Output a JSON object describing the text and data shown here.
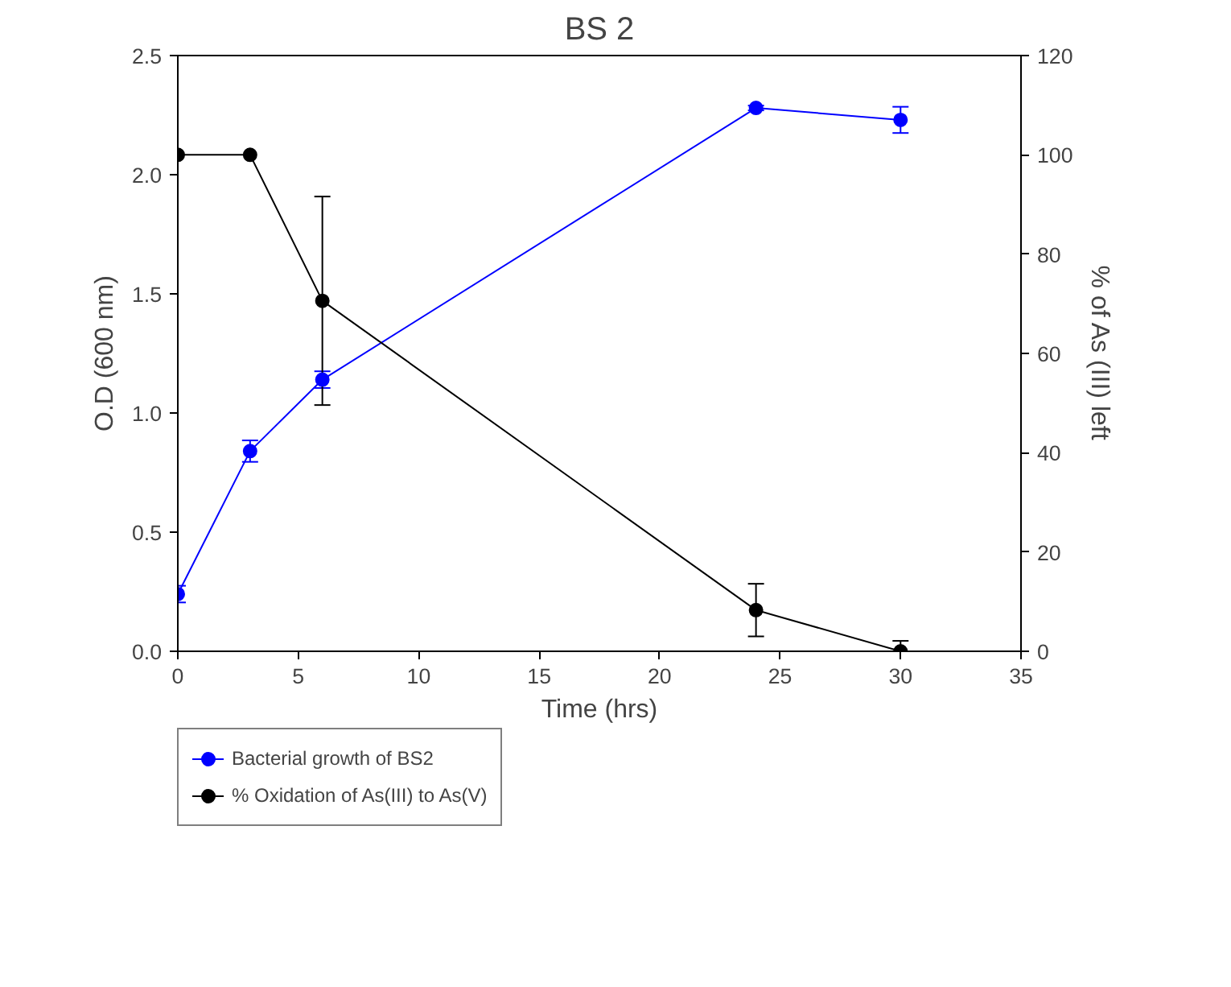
{
  "chart_data": {
    "type": "line",
    "title": "BS 2",
    "xlabel": "Time (hrs)",
    "ylabel": "O.D (600 nm)",
    "y2label": "% of As (III) left",
    "x": [
      0,
      3,
      6,
      24,
      30
    ],
    "series": [
      {
        "name": "Bacterial growth of BS2",
        "color": "#0000ff",
        "values": [
          0.24,
          0.84,
          1.14,
          2.28,
          2.23
        ],
        "errors": [
          0.035,
          0.045,
          0.035,
          0.01,
          0.055
        ]
      },
      {
        "name": "% Oxidation of As(III) to As(V)",
        "color": "#000000",
        "axis": "y2",
        "values": [
          100,
          100,
          70.6,
          8.3,
          0
        ],
        "errors": [
          null,
          null,
          21,
          5.3,
          2.1
        ]
      }
    ],
    "xlim": [
      0,
      35
    ],
    "xticks": [
      0,
      5,
      10,
      15,
      20,
      25,
      30,
      35
    ],
    "ylim": [
      0,
      2.5
    ],
    "yticks": [
      {
        "value": 0,
        "label": "0.0"
      },
      {
        "value": 0.5,
        "label": "0.5"
      },
      {
        "value": 1,
        "label": "1.0"
      },
      {
        "value": 1.5,
        "label": "1.5"
      },
      {
        "value": 2,
        "label": "2.0"
      },
      {
        "value": 2.5,
        "label": "2.5"
      }
    ],
    "y2lim": [
      0,
      120
    ],
    "y2ticks": [
      0,
      20,
      40,
      60,
      80,
      100,
      120
    ],
    "grid": false,
    "legend": "bottom left",
    "marker": "circle",
    "line_style": "solid"
  }
}
